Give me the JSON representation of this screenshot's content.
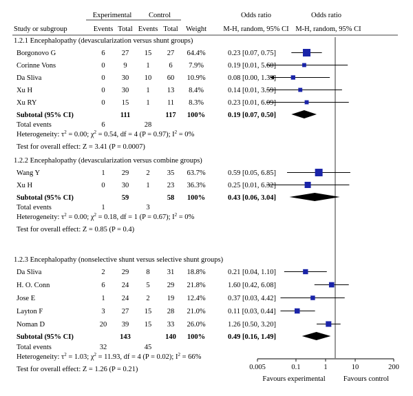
{
  "header": {
    "experimental": "Experimental",
    "control": "Control",
    "odds_ratio_1": "Odds ratio",
    "odds_ratio_2": "Odds ratio",
    "study": "Study or subgroup",
    "events_e": "Events",
    "total_e": "Total",
    "events_c": "Events",
    "total_c": "Total",
    "weight": "Weight",
    "method_1": "M-H, random, 95% CI",
    "method_2": "M-H, random, 95% CI"
  },
  "colors": {
    "marker": "#1a24a8",
    "diamond": "#000000"
  },
  "chart_data": {
    "type": "forest",
    "xscale": "log",
    "xlim": [
      0.005,
      200
    ],
    "xticks": [
      "0.005",
      "0.1",
      "1",
      "10",
      "200"
    ],
    "xlabel_left": "Favours experimental",
    "xlabel_right": "Favours control",
    "groups": [
      {
        "title": "1.2.1 Encephalopathy (devascularization versus shunt groups)",
        "studies": [
          {
            "name": "Borgonovo G",
            "ee": "6",
            "et": "27",
            "ce": "15",
            "ct": "27",
            "weight": "64.4%",
            "ci_text": "0.23 [0.07, 0.75]",
            "or": 0.23,
            "lo": 0.07,
            "hi": 0.75
          },
          {
            "name": "Corinne Vons",
            "ee": "0",
            "et": "9",
            "ce": "1",
            "ct": "6",
            "weight": "7.9%",
            "ci_text": "0.19 [0.01, 5.60]",
            "or": 0.19,
            "lo": 0.01,
            "hi": 5.6
          },
          {
            "name": "Da Sliva",
            "ee": "0",
            "et": "30",
            "ce": "10",
            "ct": "60",
            "weight": "10.9%",
            "ci_text": "0.08 [0.00, 1.39]",
            "or": 0.08,
            "lo": 0.0,
            "hi": 1.39,
            "arrow_left": true
          },
          {
            "name": "Xu H",
            "ee": "0",
            "et": "30",
            "ce": "1",
            "ct": "13",
            "weight": "8.4%",
            "ci_text": "0.14 [0.01, 3.59]",
            "or": 0.14,
            "lo": 0.01,
            "hi": 3.59
          },
          {
            "name": "Xu RY",
            "ee": "0",
            "et": "15",
            "ce": "1",
            "ct": "11",
            "weight": "8.3%",
            "ci_text": "0.23 [0.01, 6.09]",
            "or": 0.23,
            "lo": 0.01,
            "hi": 6.09
          }
        ],
        "subtotal": {
          "label": "Subtotal (95% CI)",
          "et": "111",
          "ct": "117",
          "weight": "100%",
          "ci_text": "0.19 [0.07, 0.50]",
          "or": 0.19,
          "lo": 0.07,
          "hi": 0.5
        },
        "total_events": {
          "label": "Total events",
          "e": "6",
          "c": "28"
        },
        "heterogeneity": "Heterogeneity: τ² = 0.00; χ² = 0.54, df = 4 (P = 0.97); I² = 0%",
        "overall": "Test for overall effect: Z = 3.41 (P = 0.0007)"
      },
      {
        "title": "1.2.2 Encephalopathy (devascularization versus combine groups)",
        "studies": [
          {
            "name": "Wang Y",
            "ee": "1",
            "et": "29",
            "ce": "2",
            "ct": "35",
            "weight": "63.7%",
            "ci_text": "0.59 [0.05, 6.85]",
            "or": 0.59,
            "lo": 0.05,
            "hi": 6.85
          },
          {
            "name": "Xu H",
            "ee": "0",
            "et": "30",
            "ce": "1",
            "ct": "23",
            "weight": "36.3%",
            "ci_text": "0.25 [0.01, 6.32]",
            "or": 0.25,
            "lo": 0.01,
            "hi": 6.32
          }
        ],
        "subtotal": {
          "label": "Subtotal (95% CI)",
          "et": "59",
          "ct": "58",
          "weight": "100%",
          "ci_text": "0.43 [0.06, 3.04]",
          "or": 0.43,
          "lo": 0.06,
          "hi": 3.04
        },
        "total_events": {
          "label": "Total events",
          "e": "1",
          "c": "3"
        },
        "heterogeneity": "Heterogeneity: τ² = 0.00; χ² = 0.18, df = 1 (P = 0.67); I² = 0%",
        "overall": "Test for overall effect: Z = 0.85 (P = 0.4)"
      },
      {
        "title": "1.2.3 Encephalopathy (nonselective shunt versus selective shunt groups)",
        "studies": [
          {
            "name": "Da Sliva",
            "ee": "2",
            "et": "29",
            "ce": "8",
            "ct": "31",
            "weight": "18.8%",
            "ci_text": "0.21 [0.04, 1.10]",
            "or": 0.21,
            "lo": 0.04,
            "hi": 1.1
          },
          {
            "name": "H. O. Conn",
            "ee": "6",
            "et": "24",
            "ce": "5",
            "ct": "29",
            "weight": "21.8%",
            "ci_text": "1.60 [0.42, 6.08]",
            "or": 1.6,
            "lo": 0.42,
            "hi": 6.08
          },
          {
            "name": "Jose E",
            "ee": "1",
            "et": "24",
            "ce": "2",
            "ct": "19",
            "weight": "12.4%",
            "ci_text": "0.37 [0.03, 4.42]",
            "or": 0.37,
            "lo": 0.03,
            "hi": 4.42
          },
          {
            "name": "Layton F",
            "ee": "3",
            "et": "27",
            "ce": "15",
            "ct": "28",
            "weight": "21.0%",
            "ci_text": "0.11 [0.03, 0.44]",
            "or": 0.11,
            "lo": 0.03,
            "hi": 0.44
          },
          {
            "name": "Noman D",
            "ee": "20",
            "et": "39",
            "ce": "15",
            "ct": "33",
            "weight": "26.0%",
            "ci_text": "1.26 [0.50, 3.20]",
            "or": 1.26,
            "lo": 0.5,
            "hi": 3.2
          }
        ],
        "subtotal": {
          "label": "Subtotal (95% CI)",
          "et": "143",
          "ct": "140",
          "weight": "100%",
          "ci_text": "0.49 [0.16, 1.49]",
          "or": 0.49,
          "lo": 0.16,
          "hi": 1.49
        },
        "total_events": {
          "label": "Total events",
          "e": "32",
          "c": "45"
        },
        "heterogeneity": "Heterogeneity: τ² = 1.03; χ² = 11.93, df = 4 (P = 0.02); I² = 66%",
        "overall": "Test for overall effect: Z = 1.26 (P = 0.21)"
      }
    ]
  }
}
